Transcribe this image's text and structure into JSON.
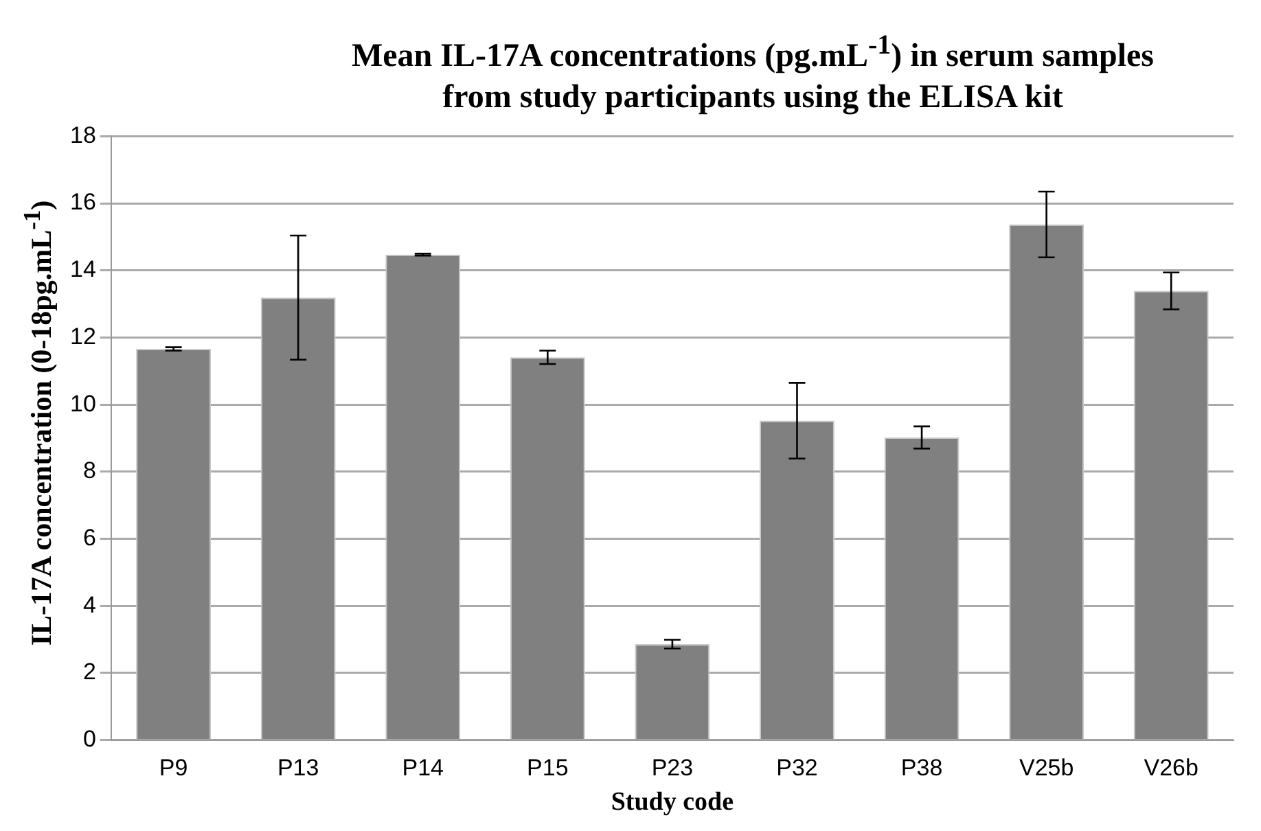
{
  "chart_data": {
    "type": "bar",
    "title": "Mean IL-17A concentrations (pg.mL$^{-1}$) in serum samples from study participants using the ELISA kit",
    "xlabel": "Study code",
    "ylabel": "IL-17A concentration (0-18pg.mL$^{-1}$)",
    "categories": [
      "P9",
      "P13",
      "P14",
      "P15",
      "P23",
      "P32",
      "P38",
      "V25b",
      "V26b"
    ],
    "values": [
      11.66,
      13.19,
      14.47,
      11.41,
      2.86,
      9.52,
      9.02,
      15.37,
      13.39
    ],
    "errors": [
      0.05,
      1.85,
      0.03,
      0.2,
      0.13,
      1.13,
      0.33,
      0.98,
      0.55
    ],
    "color": "#808080",
    "ylim": [
      0,
      18
    ],
    "yticks": [
      0,
      2,
      4,
      6,
      8,
      10,
      12,
      14,
      16,
      18
    ],
    "grid": "y",
    "legend": false
  }
}
